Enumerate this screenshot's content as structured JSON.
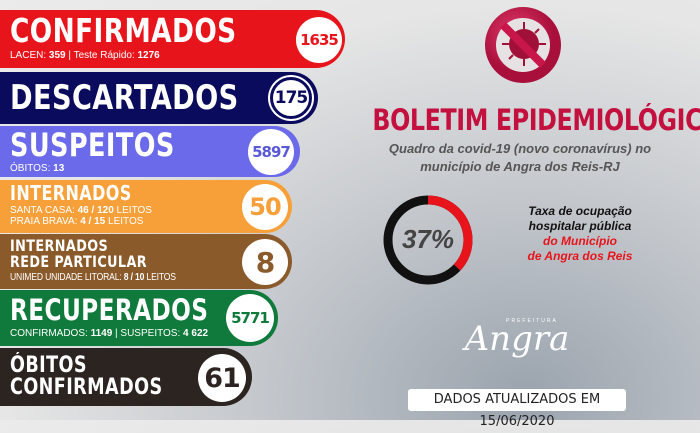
{
  "colors": {
    "confirmados": "#e8141b",
    "descartados": "#0b0b5e",
    "suspeitos": "#6a6aea",
    "internados": "#f7a03a",
    "rede_particular": "#8b5a2b",
    "recuperados": "#0f7a3b",
    "obitos": "#2c2420",
    "title": "#c4103f"
  },
  "cards": {
    "confirmados": {
      "title": "CONFIRMADOS",
      "value": "1635",
      "sub": [
        {
          "label": "LACEN: ",
          "value": "359"
        },
        {
          "label": " | Teste Rápido: ",
          "value": "1276"
        }
      ]
    },
    "descartados": {
      "title": "DESCARTADOS",
      "value": "175"
    },
    "suspeitos": {
      "title": "SUSPEITOS",
      "value": "5897",
      "sub": [
        {
          "label": "ÓBITOS: ",
          "value": "13"
        }
      ]
    },
    "internados": {
      "title": "INTERNADOS",
      "value": "50",
      "lines": [
        {
          "label": "SANTA CASA: ",
          "value": "46 / 120",
          "suffix": " LEITOS"
        },
        {
          "label": "PRAIA BRAVA: ",
          "value": "4 / 15",
          "suffix": " LEITOS"
        }
      ]
    },
    "rede_particular": {
      "title_1": "INTERNADOS",
      "title_2": "REDE PARTICULAR",
      "value": "8",
      "line": {
        "label": "UNIMED UNIDADE LITORAL: ",
        "value": "8 / 10",
        "suffix": " LEITOS"
      }
    },
    "recuperados": {
      "title": "RECUPERADOS",
      "value": "5771",
      "sub": [
        {
          "label": "CONFIRMADOS: ",
          "value": "1149"
        },
        {
          "label": " | SUSPEITOS: ",
          "value": "4 622"
        }
      ]
    },
    "obitos": {
      "title_1": "ÓBITOS",
      "title_2": "CONFIRMADOS",
      "value": "61"
    }
  },
  "header": {
    "icon": "no-virus-icon",
    "title": "BOLETIM EPIDEMIOLÓGICO",
    "subtitle_1": "Quadro da covid-19 (novo coronavírus) no",
    "subtitle_2": "município de Angra dos Reis-RJ"
  },
  "occupancy": {
    "percent": 37,
    "label": "37%",
    "text_1": "Taxa de ocupação",
    "text_2": "hospitalar pública",
    "text_3": "do Município",
    "text_4": "de Angra dos Reis"
  },
  "logo": {
    "small": "PREFEITURA",
    "main": "Angra"
  },
  "footer": {
    "updated": "DADOS ATUALIZADOS EM 15/06/2020"
  }
}
